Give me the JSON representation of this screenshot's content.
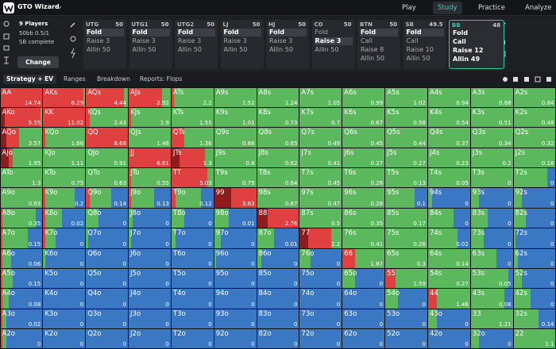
{
  "topbar": {
    "logo": "GTO Wizard",
    "nav": [
      "Play",
      "Study",
      "Practice",
      "Analyze"
    ],
    "active_nav": 1
  },
  "setup": {
    "players": "9 Players",
    "stakes": "50bb 0.5/1",
    "mode": "SB complete",
    "button": "Change"
  },
  "positions": [
    {
      "name": "UTG",
      "stack": 50,
      "actions": [
        "Fold",
        "Raise 3",
        "Allin 50"
      ],
      "selected": 0
    },
    {
      "name": "UTG1",
      "stack": 50,
      "actions": [
        "Fold",
        "Raise 3",
        "Allin 50"
      ],
      "selected": 0
    },
    {
      "name": "UTG2",
      "stack": 50,
      "actions": [
        "Fold",
        "Raise 3",
        "Allin 50"
      ],
      "selected": 0
    },
    {
      "name": "LJ",
      "stack": 50,
      "actions": [
        "Fold",
        "Raise 3",
        "Allin 50"
      ],
      "selected": 0
    },
    {
      "name": "HJ",
      "stack": 50,
      "actions": [
        "Fold",
        "Raise 3",
        "Allin 50"
      ],
      "selected": 0
    },
    {
      "name": "CO",
      "stack": 50,
      "actions": [
        "Fold",
        "Raise 3",
        "Allin 50"
      ],
      "selected": 1
    },
    {
      "name": "BTN",
      "stack": 50,
      "actions": [
        "Fold",
        "Call",
        "Raise 8",
        "Allin 50"
      ],
      "selected": 0
    },
    {
      "name": "SB",
      "stack": 49.5,
      "actions": [
        "Fold",
        "Call",
        "Raise 10",
        "Allin 50"
      ],
      "selected": 0
    },
    {
      "name": "BB",
      "stack": 48,
      "actions": [
        "Fold",
        "Call",
        "Raise 12",
        "Allin 49"
      ],
      "active": true
    }
  ],
  "tabs": [
    "Strategy + EV",
    "Ranges",
    "Breakdown",
    "Reports: Flops"
  ],
  "grid": {
    "mix_colors": [
      "#8e1c1c",
      "#e04040",
      "#5cb85c",
      "#3b78c4"
    ],
    "hands": [
      [
        "AA",
        "AKs",
        "AQs",
        "AJs",
        "ATs",
        "A9s",
        "A8s",
        "A7s",
        "A6s",
        "A5s",
        "A4s",
        "A3s",
        "A2s"
      ],
      [
        "AKo",
        "KK",
        "KQs",
        "KJs",
        "KTs",
        "K9s",
        "K8s",
        "K7s",
        "K6s",
        "K5s",
        "K4s",
        "K3s",
        "K2s"
      ],
      [
        "AQo",
        "KQo",
        "QQ",
        "QJs",
        "QTs",
        "Q9s",
        "Q8s",
        "Q7s",
        "Q6s",
        "Q5s",
        "Q4s",
        "Q3s",
        "Q2s"
      ],
      [
        "AJo",
        "KJo",
        "QJo",
        "JJ",
        "JTs",
        "J9s",
        "J8s",
        "J7s",
        "J6s",
        "J5s",
        "J4s",
        "J3s",
        "J2s"
      ],
      [
        "ATo",
        "KTo",
        "QTo",
        "JTo",
        "TT",
        "T9s",
        "T8s",
        "T7s",
        "T6s",
        "T5s",
        "T4s",
        "T3s",
        "T2s"
      ],
      [
        "A9o",
        "K9o",
        "Q9o",
        "J9o",
        "T9o",
        "99",
        "98s",
        "97s",
        "96s",
        "95s",
        "94s",
        "93s",
        "92s"
      ],
      [
        "A8o",
        "K8o",
        "Q8o",
        "J8o",
        "T8o",
        "98o",
        "88",
        "87s",
        "86s",
        "85s",
        "84s",
        "83s",
        "82s"
      ],
      [
        "A7o",
        "K7o",
        "Q7o",
        "J7o",
        "T7o",
        "97o",
        "87o",
        "77",
        "76s",
        "75s",
        "74s",
        "73s",
        "72s"
      ],
      [
        "A6o",
        "K6o",
        "Q6o",
        "J6o",
        "T6o",
        "96o",
        "86o",
        "76o",
        "66",
        "65s",
        "64s",
        "63s",
        "62s"
      ],
      [
        "A5o",
        "K5o",
        "Q5o",
        "J5o",
        "T5o",
        "95o",
        "85o",
        "75o",
        "65o",
        "55",
        "54s",
        "53s",
        "52s"
      ],
      [
        "A4o",
        "K4o",
        "Q4o",
        "J4o",
        "T4o",
        "94o",
        "84o",
        "74o",
        "64o",
        "54o",
        "44",
        "43s",
        "42s"
      ],
      [
        "A3o",
        "K3o",
        "Q3o",
        "J3o",
        "T3o",
        "93o",
        "83o",
        "73o",
        "63o",
        "53o",
        "43o",
        "33",
        "32s"
      ],
      [
        "A2o",
        "K2o",
        "Q2o",
        "J2o",
        "T2o",
        "92o",
        "82o",
        "72o",
        "62o",
        "52o",
        "42o",
        "32o",
        "22"
      ]
    ],
    "ev": [
      [
        14.74,
        6.29,
        4.44,
        2.92,
        2.2,
        1.52,
        1.24,
        1.05,
        0.99,
        1.02,
        0.94,
        0.88,
        0.84
      ],
      [
        5.55,
        11.02,
        2.43,
        1.9,
        1.55,
        1.01,
        0.73,
        0.7,
        0.67,
        0.58,
        0.54,
        0.51,
        0.48
      ],
      [
        3.57,
        1.66,
        8.68,
        1.46,
        1.36,
        0.88,
        0.65,
        0.49,
        0.45,
        0.44,
        0.37,
        0.34,
        0.32
      ],
      [
        1.95,
        1.11,
        0.91,
        6.61,
        1.3,
        0.8,
        0.62,
        0.41,
        0.27,
        0.27,
        0.23,
        0.2,
        0.18
      ],
      [
        1.3,
        0.75,
        0.63,
        0.55,
        5.03,
        0.79,
        0.64,
        0.45,
        0.28,
        0.13,
        0.05,
        0,
        0
      ],
      [
        0.63,
        0.2,
        0.14,
        0.13,
        0.12,
        3.83,
        0.67,
        0.47,
        0.28,
        0.1,
        0,
        0,
        0
      ],
      [
        0.35,
        0.02,
        0,
        0,
        0,
        0.01,
        2.76,
        0.5,
        0.35,
        0.17,
        0,
        0,
        0
      ],
      [
        0.15,
        0,
        0,
        0,
        0,
        0,
        0.01,
        2.2,
        0.41,
        0.26,
        0.02,
        0,
        0
      ],
      [
        0.06,
        0,
        0,
        0,
        0,
        0,
        0,
        0,
        1.87,
        0.3,
        0.14,
        0,
        0
      ],
      [
        0.15,
        0,
        0,
        0,
        0,
        0,
        0,
        0,
        0,
        1.59,
        0.27,
        0.05,
        0
      ],
      [
        0.08,
        0,
        0,
        0,
        0,
        0,
        0,
        0,
        0,
        0,
        1.46,
        0.08,
        0
      ],
      [
        0.02,
        0,
        0,
        0,
        0,
        0,
        0,
        0,
        0,
        0,
        0,
        1.21,
        0.14
      ],
      [
        0,
        0,
        0,
        0,
        0,
        0,
        0,
        0,
        0,
        0,
        0,
        0,
        1.1
      ]
    ],
    "mix": [
      [
        [
          0,
          100,
          0,
          0
        ],
        [
          0,
          95,
          5,
          0
        ],
        [
          0,
          90,
          10,
          0
        ],
        [
          0,
          80,
          20,
          0
        ],
        [
          0,
          5,
          95,
          0
        ],
        [
          0,
          0,
          100,
          0
        ],
        [
          0,
          0,
          100,
          0
        ],
        [
          0,
          0,
          100,
          0
        ],
        [
          0,
          0,
          100,
          0
        ],
        [
          0,
          0,
          100,
          0
        ],
        [
          0,
          0,
          100,
          0
        ],
        [
          0,
          0,
          100,
          0
        ],
        [
          0,
          0,
          100,
          0
        ]
      ],
      [
        [
          10,
          85,
          5,
          0
        ],
        [
          0,
          100,
          0,
          0
        ],
        [
          0,
          10,
          90,
          0
        ],
        [
          0,
          5,
          95,
          0
        ],
        [
          0,
          0,
          100,
          0
        ],
        [
          0,
          0,
          100,
          0
        ],
        [
          0,
          0,
          100,
          0
        ],
        [
          0,
          0,
          100,
          0
        ],
        [
          0,
          0,
          100,
          0
        ],
        [
          0,
          0,
          100,
          0
        ],
        [
          0,
          0,
          100,
          0
        ],
        [
          0,
          0,
          100,
          0
        ],
        [
          0,
          0,
          100,
          0
        ]
      ],
      [
        [
          15,
          30,
          55,
          0
        ],
        [
          0,
          5,
          95,
          0
        ],
        [
          0,
          100,
          0,
          0
        ],
        [
          0,
          0,
          100,
          0
        ],
        [
          0,
          30,
          70,
          0
        ],
        [
          0,
          0,
          100,
          0
        ],
        [
          0,
          0,
          100,
          0
        ],
        [
          0,
          0,
          100,
          0
        ],
        [
          0,
          0,
          100,
          0
        ],
        [
          0,
          0,
          100,
          0
        ],
        [
          0,
          0,
          100,
          0
        ],
        [
          0,
          0,
          100,
          0
        ],
        [
          0,
          0,
          100,
          0
        ]
      ],
      [
        [
          20,
          10,
          70,
          0
        ],
        [
          0,
          0,
          100,
          0
        ],
        [
          0,
          0,
          100,
          0
        ],
        [
          0,
          100,
          0,
          0
        ],
        [
          20,
          60,
          20,
          0
        ],
        [
          0,
          0,
          100,
          0
        ],
        [
          0,
          0,
          100,
          0
        ],
        [
          0,
          0,
          100,
          0
        ],
        [
          0,
          0,
          100,
          0
        ],
        [
          0,
          0,
          100,
          0
        ],
        [
          0,
          0,
          100,
          0
        ],
        [
          0,
          0,
          100,
          0
        ],
        [
          0,
          0,
          100,
          0
        ]
      ],
      [
        [
          0,
          0,
          100,
          0
        ],
        [
          0,
          0,
          100,
          0
        ],
        [
          0,
          0,
          100,
          0
        ],
        [
          0,
          5,
          95,
          0
        ],
        [
          0,
          85,
          15,
          0
        ],
        [
          0,
          0,
          100,
          0
        ],
        [
          0,
          0,
          100,
          0
        ],
        [
          0,
          0,
          100,
          0
        ],
        [
          0,
          0,
          100,
          0
        ],
        [
          0,
          0,
          100,
          0
        ],
        [
          0,
          0,
          100,
          0
        ],
        [
          0,
          0,
          100,
          0
        ],
        [
          0,
          0,
          80,
          20
        ]
      ],
      [
        [
          0,
          0,
          100,
          0
        ],
        [
          0,
          5,
          70,
          25
        ],
        [
          0,
          10,
          50,
          40
        ],
        [
          0,
          5,
          55,
          40
        ],
        [
          0,
          10,
          60,
          30
        ],
        [
          40,
          60,
          0,
          0
        ],
        [
          0,
          0,
          100,
          0
        ],
        [
          0,
          0,
          100,
          0
        ],
        [
          0,
          0,
          100,
          0
        ],
        [
          0,
          0,
          70,
          30
        ],
        [
          0,
          0,
          10,
          90
        ],
        [
          0,
          0,
          20,
          80
        ],
        [
          0,
          0,
          20,
          80
        ]
      ],
      [
        [
          0,
          5,
          80,
          15
        ],
        [
          0,
          5,
          40,
          55
        ],
        [
          0,
          0,
          30,
          70
        ],
        [
          0,
          0,
          10,
          90
        ],
        [
          0,
          0,
          30,
          70
        ],
        [
          0,
          0,
          35,
          65
        ],
        [
          25,
          75,
          0,
          0
        ],
        [
          0,
          0,
          100,
          0
        ],
        [
          0,
          0,
          100,
          0
        ],
        [
          0,
          0,
          100,
          0
        ],
        [
          0,
          0,
          60,
          40
        ],
        [
          0,
          0,
          40,
          60
        ],
        [
          0,
          0,
          30,
          70
        ]
      ],
      [
        [
          0,
          5,
          60,
          35
        ],
        [
          0,
          5,
          25,
          70
        ],
        [
          0,
          0,
          5,
          95
        ],
        [
          0,
          0,
          5,
          95
        ],
        [
          0,
          0,
          10,
          90
        ],
        [
          0,
          0,
          15,
          85
        ],
        [
          0,
          0,
          40,
          60
        ],
        [
          20,
          55,
          25,
          0
        ],
        [
          0,
          0,
          100,
          0
        ],
        [
          0,
          0,
          100,
          0
        ],
        [
          0,
          0,
          70,
          30
        ],
        [
          0,
          0,
          30,
          70
        ],
        [
          0,
          0,
          5,
          95
        ]
      ],
      [
        [
          0,
          5,
          20,
          75
        ],
        [
          0,
          0,
          5,
          95
        ],
        [
          0,
          0,
          0,
          100
        ],
        [
          0,
          0,
          0,
          100
        ],
        [
          0,
          0,
          0,
          100
        ],
        [
          0,
          0,
          5,
          95
        ],
        [
          0,
          0,
          10,
          90
        ],
        [
          0,
          0,
          25,
          75
        ],
        [
          0,
          30,
          70,
          0
        ],
        [
          0,
          0,
          100,
          0
        ],
        [
          0,
          0,
          100,
          0
        ],
        [
          0,
          0,
          60,
          40
        ],
        [
          0,
          0,
          10,
          90
        ]
      ],
      [
        [
          0,
          5,
          25,
          70
        ],
        [
          0,
          0,
          0,
          100
        ],
        [
          0,
          0,
          0,
          100
        ],
        [
          0,
          0,
          0,
          100
        ],
        [
          0,
          0,
          0,
          100
        ],
        [
          0,
          0,
          0,
          100
        ],
        [
          0,
          0,
          0,
          100
        ],
        [
          0,
          0,
          0,
          100
        ],
        [
          0,
          0,
          30,
          70
        ],
        [
          0,
          25,
          75,
          0
        ],
        [
          0,
          0,
          100,
          0
        ],
        [
          0,
          0,
          90,
          10
        ],
        [
          0,
          0,
          20,
          80
        ]
      ],
      [
        [
          0,
          5,
          15,
          80
        ],
        [
          0,
          0,
          0,
          100
        ],
        [
          0,
          0,
          0,
          100
        ],
        [
          0,
          0,
          0,
          100
        ],
        [
          0,
          0,
          0,
          100
        ],
        [
          0,
          0,
          0,
          100
        ],
        [
          0,
          0,
          0,
          100
        ],
        [
          0,
          0,
          0,
          100
        ],
        [
          0,
          0,
          0,
          100
        ],
        [
          0,
          0,
          30,
          70
        ],
        [
          0,
          20,
          80,
          0
        ],
        [
          0,
          0,
          80,
          20
        ],
        [
          0,
          0,
          40,
          60
        ]
      ],
      [
        [
          0,
          5,
          10,
          85
        ],
        [
          0,
          0,
          0,
          100
        ],
        [
          0,
          0,
          0,
          100
        ],
        [
          0,
          0,
          0,
          100
        ],
        [
          0,
          0,
          0,
          100
        ],
        [
          0,
          0,
          0,
          100
        ],
        [
          0,
          0,
          0,
          100
        ],
        [
          0,
          0,
          0,
          100
        ],
        [
          0,
          0,
          0,
          100
        ],
        [
          0,
          0,
          0,
          100
        ],
        [
          0,
          0,
          20,
          80
        ],
        [
          0,
          0,
          100,
          0
        ],
        [
          0,
          0,
          60,
          40
        ]
      ],
      [
        [
          0,
          5,
          10,
          85
        ],
        [
          0,
          0,
          0,
          100
        ],
        [
          0,
          0,
          0,
          100
        ],
        [
          0,
          0,
          0,
          100
        ],
        [
          0,
          0,
          0,
          100
        ],
        [
          0,
          0,
          0,
          100
        ],
        [
          0,
          0,
          0,
          100
        ],
        [
          0,
          0,
          0,
          100
        ],
        [
          0,
          0,
          0,
          100
        ],
        [
          0,
          0,
          0,
          100
        ],
        [
          0,
          0,
          0,
          100
        ],
        [
          0,
          0,
          20,
          80
        ],
        [
          0,
          0,
          100,
          0
        ]
      ]
    ]
  }
}
